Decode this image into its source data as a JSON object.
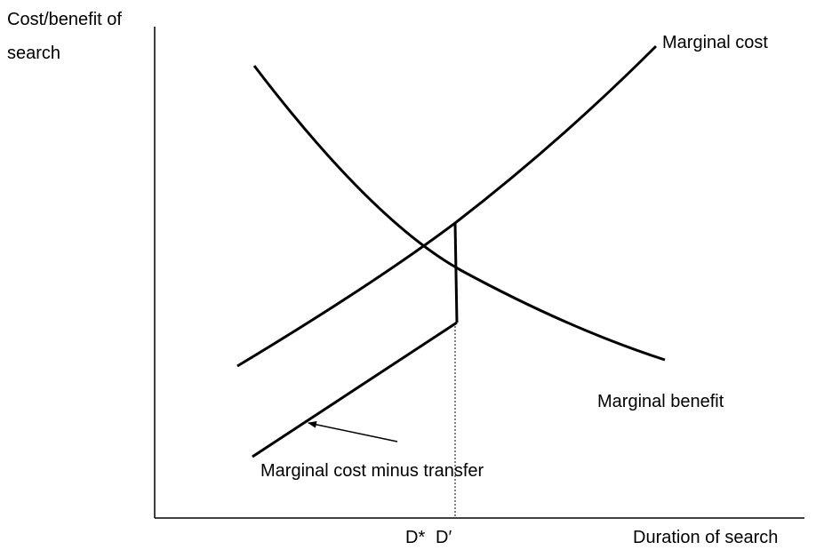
{
  "y_axis_label": [
    "Cost/benefit of",
    "search"
  ],
  "x_axis_label": "Duration of search",
  "curves": [
    {
      "label": "Marginal cost"
    },
    {
      "label": "Marginal benefit"
    },
    {
      "label": "Marginal cost minus transfer"
    }
  ],
  "x_markers": [
    "D*",
    "D′"
  ]
}
